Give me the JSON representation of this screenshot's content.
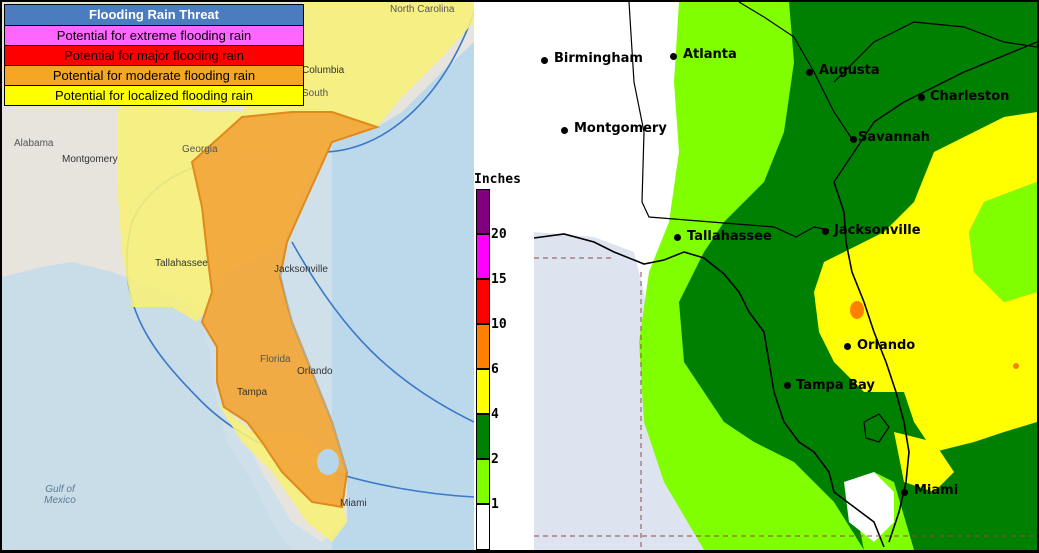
{
  "left_panel": {
    "legend": {
      "title": "Flooding Rain Threat",
      "title_color": "#4c7cc0",
      "items": [
        {
          "label": "Potential for extreme flooding rain",
          "color": "#ff66ff"
        },
        {
          "label": "Potential for major flooding rain",
          "color": "#ff0000"
        },
        {
          "label": "Potential for moderate flooding rain",
          "color": "#f5a623"
        },
        {
          "label": "Potential for localized flooding rain",
          "color": "#ffff00"
        }
      ]
    },
    "labels": {
      "south_carolina": "South",
      "north_carolina": "North Carolina",
      "alabama": "Alabama",
      "georgia": "Georgia",
      "florida": "Florida",
      "gulf": "Gulf of Mexico"
    },
    "cities": {
      "columbia": "Columbia",
      "montgomery": "Montgomery",
      "tallahassee": "Tallahassee",
      "jacksonville": "Jacksonville",
      "orlando": "Orlando",
      "tampa": "Tampa",
      "miami": "Miami"
    }
  },
  "scale": {
    "title": "Inches",
    "ticks": [
      "20",
      "15",
      "10",
      "6",
      "4",
      "2",
      "1"
    ],
    "colors": [
      "#800080",
      "#ff00ff",
      "#ff0000",
      "#ff8000",
      "#ffff00",
      "#008000",
      "#80ff00",
      "#ffffff"
    ]
  },
  "right_panel": {
    "cities": {
      "birmingham": "Birmingham",
      "atlanta": "Atlanta",
      "augusta": "Augusta",
      "charleston": "Charleston",
      "montgomery": "Montgomery",
      "savannah": "Savannah",
      "tallahassee": "Tallahassee",
      "jacksonville": "Jacksonville",
      "orlando": "Orlando",
      "tampa_bay": "Tampa Bay",
      "miami": "Miami"
    },
    "colors": {
      "light_green": "#80ff00",
      "dark_green": "#008000",
      "yellow": "#ffff00",
      "orange": "#ff8000",
      "water": "#dde4ef"
    }
  }
}
